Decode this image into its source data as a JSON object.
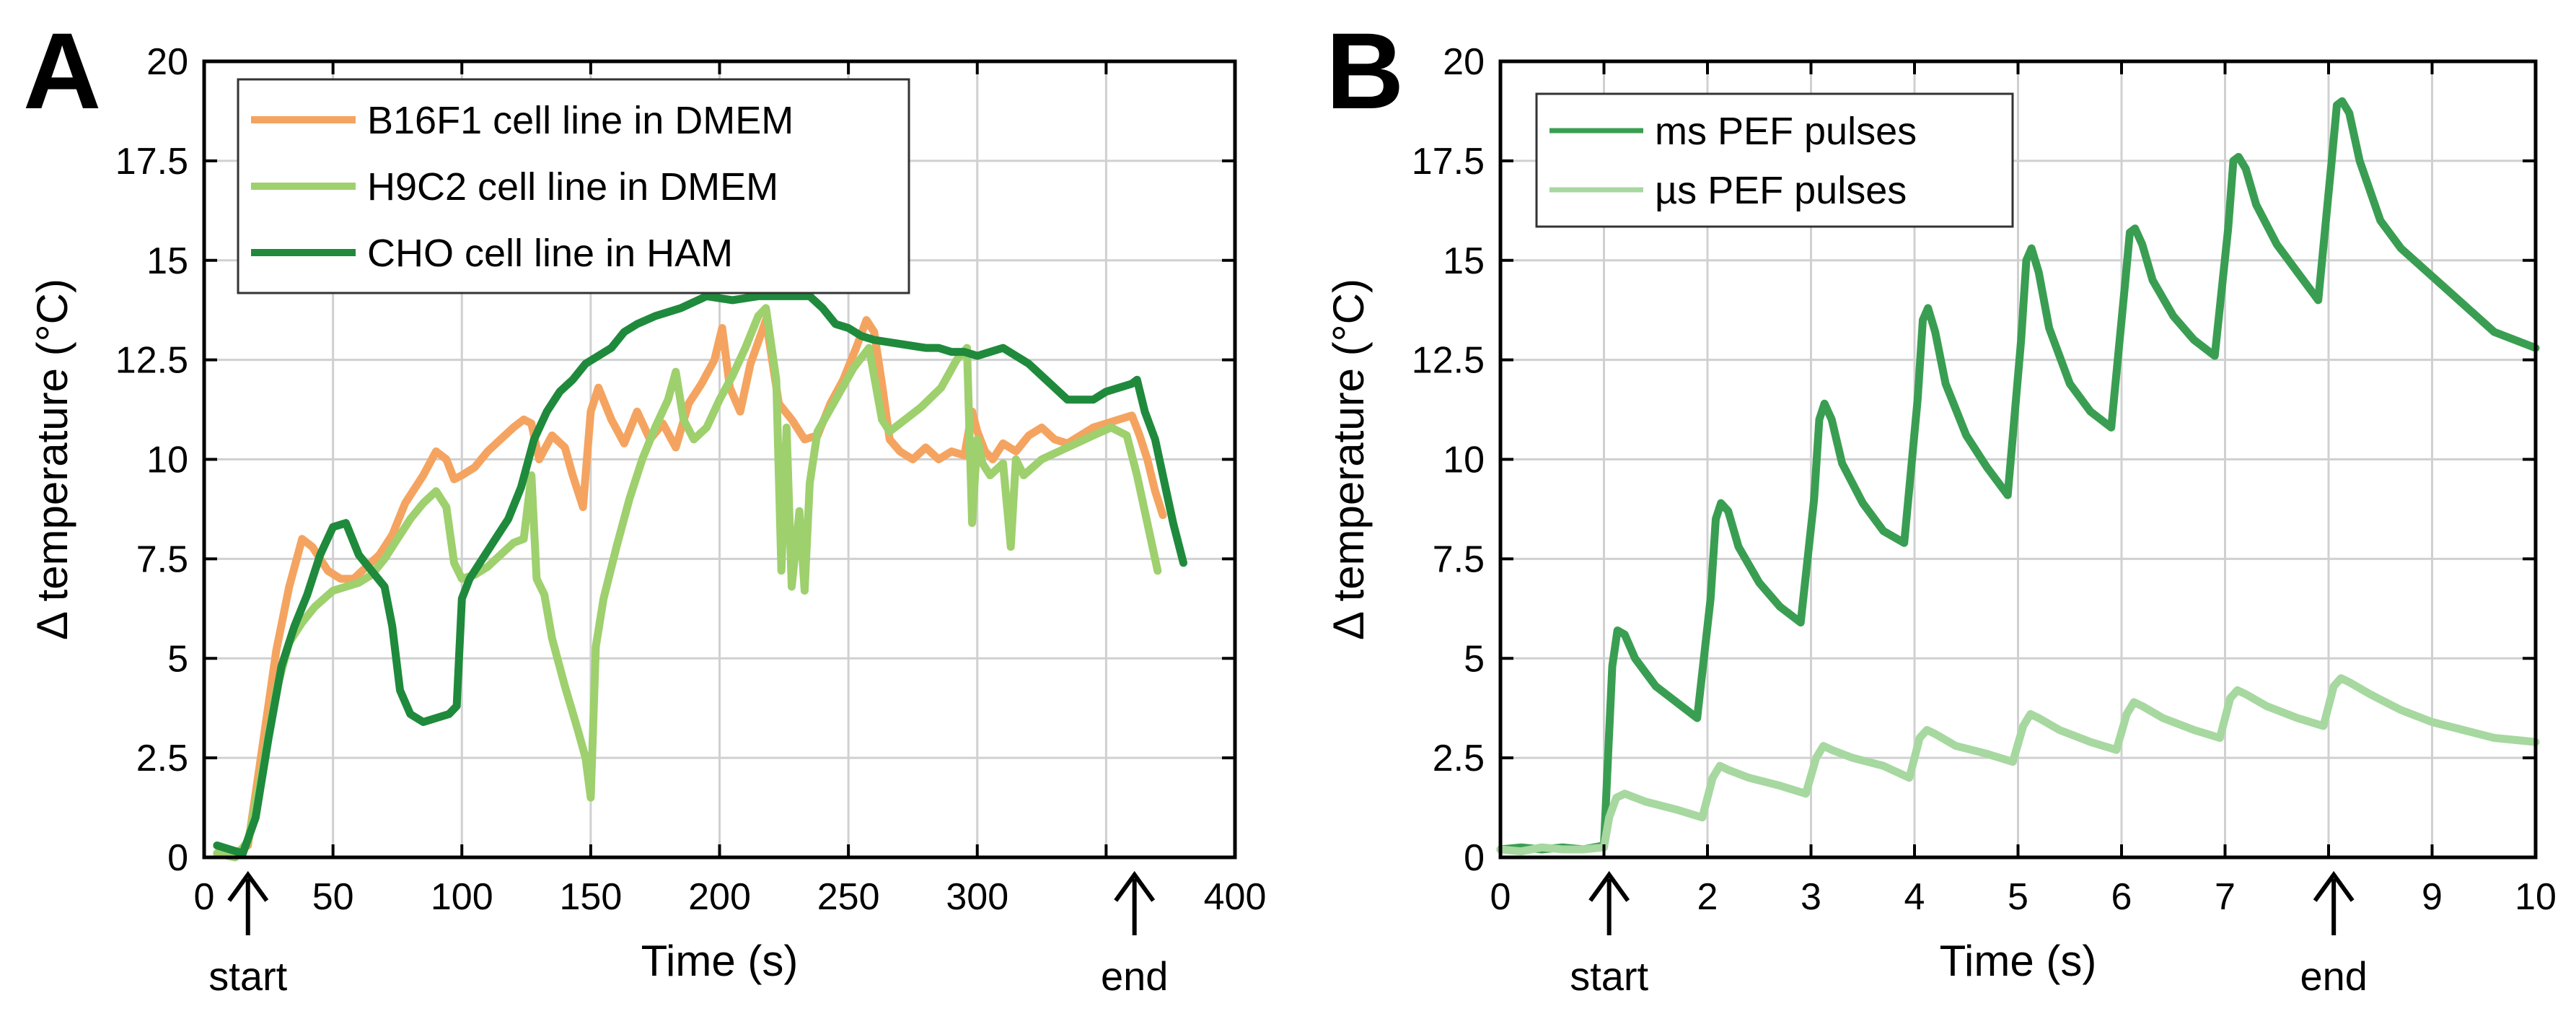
{
  "chart_data": [
    {
      "type": "line",
      "panel_label": "A",
      "xlabel": "Time (s)",
      "ylabel": "Δ temperature (°C)",
      "xlim": [
        0,
        400
      ],
      "ylim": [
        0,
        20
      ],
      "xticks": [
        0,
        50,
        100,
        150,
        200,
        250,
        300,
        350,
        400
      ],
      "xtick_labels": [
        "0",
        "50",
        "100",
        "150",
        "200",
        "250",
        "300",
        "",
        "400"
      ],
      "yticks": [
        0,
        2.5,
        5,
        7.5,
        10,
        12.5,
        15,
        17.5,
        20
      ],
      "ytick_labels": [
        "0",
        "2.5",
        "5",
        "7.5",
        "10",
        "12.5",
        "15",
        "17.5",
        "20"
      ],
      "grid": true,
      "legend_position": "top-left",
      "annotations": [
        {
          "text": "start",
          "x": 17
        },
        {
          "text": "end",
          "x": 361
        }
      ],
      "series": [
        {
          "name": "B16F1 cell line in DMEM",
          "color": "#f4a460",
          "x": [
            5,
            12,
            17,
            22,
            28,
            33,
            38,
            42,
            48,
            53,
            58,
            63,
            68,
            73,
            78,
            85,
            90,
            94,
            97,
            100,
            105,
            110,
            115,
            120,
            124,
            127,
            130,
            135,
            140,
            143,
            147,
            150,
            153,
            158,
            163,
            168,
            173,
            178,
            183,
            188,
            193,
            198,
            201,
            204,
            208,
            212,
            218,
            223,
            228,
            233,
            238,
            243,
            248,
            253,
            257,
            260,
            263,
            266,
            270,
            275,
            280,
            285,
            290,
            295,
            298,
            300,
            303,
            306,
            310,
            315,
            320,
            325,
            330,
            335,
            340,
            345,
            350,
            355,
            360,
            363,
            366,
            369,
            372
          ],
          "values": [
            0.1,
            0.1,
            0.3,
            2.5,
            5.2,
            6.8,
            8.0,
            7.8,
            7.2,
            7.0,
            7.0,
            7.3,
            7.6,
            8.1,
            8.9,
            9.6,
            10.2,
            10.0,
            9.5,
            9.6,
            9.8,
            10.2,
            10.5,
            10.8,
            11.0,
            10.9,
            10.0,
            10.6,
            10.3,
            9.6,
            8.8,
            11.2,
            11.8,
            11.0,
            10.4,
            11.2,
            10.5,
            10.9,
            10.3,
            11.4,
            11.9,
            12.5,
            13.3,
            11.8,
            11.2,
            12.4,
            13.5,
            11.4,
            11.0,
            10.5,
            10.6,
            11.4,
            12.0,
            12.8,
            13.5,
            13.2,
            11.9,
            10.5,
            10.2,
            10.0,
            10.3,
            10.0,
            10.2,
            10.1,
            11.2,
            10.7,
            10.2,
            10.0,
            10.4,
            10.2,
            10.6,
            10.8,
            10.5,
            10.4,
            10.6,
            10.8,
            10.9,
            11.0,
            11.1,
            10.6,
            10.0,
            9.2,
            8.6
          ]
        },
        {
          "name": "H9C2 cell line in DMEM",
          "color": "#9ed06e",
          "x": [
            5,
            12,
            17,
            22,
            28,
            33,
            38,
            43,
            50,
            55,
            60,
            65,
            70,
            75,
            80,
            85,
            90,
            94,
            97,
            100,
            105,
            110,
            115,
            120,
            124,
            127,
            129,
            132,
            135,
            140,
            145,
            148,
            150,
            152,
            155,
            160,
            165,
            170,
            175,
            180,
            183,
            186,
            190,
            195,
            200,
            205,
            210,
            215,
            218,
            222,
            224,
            226,
            228,
            231,
            233,
            235,
            238,
            245,
            252,
            258,
            263,
            266,
            270,
            278,
            286,
            292,
            296,
            298,
            300,
            302,
            305,
            310,
            313,
            315,
            318,
            325,
            335,
            345,
            352,
            358,
            362,
            366,
            370
          ],
          "values": [
            0.1,
            0.0,
            0.4,
            2.0,
            4.2,
            5.4,
            5.9,
            6.3,
            6.7,
            6.8,
            6.9,
            7.1,
            7.5,
            8.0,
            8.5,
            8.9,
            9.2,
            8.8,
            7.4,
            7.0,
            7.1,
            7.3,
            7.6,
            7.9,
            8.0,
            9.6,
            7.0,
            6.6,
            5.5,
            4.3,
            3.2,
            2.5,
            1.5,
            5.3,
            6.5,
            7.8,
            9.0,
            10.0,
            10.8,
            11.5,
            12.2,
            11.0,
            10.5,
            10.8,
            11.5,
            12.1,
            12.8,
            13.6,
            13.8,
            12.0,
            7.2,
            10.8,
            6.8,
            8.7,
            6.7,
            9.4,
            10.7,
            11.5,
            12.3,
            12.8,
            11.0,
            10.7,
            10.9,
            11.3,
            11.8,
            12.5,
            12.8,
            8.4,
            10.5,
            9.9,
            9.6,
            9.9,
            7.8,
            10.0,
            9.6,
            10.0,
            10.3,
            10.6,
            10.8,
            10.6,
            9.6,
            8.4,
            7.2
          ]
        },
        {
          "name": "CHO cell line in HAM",
          "color": "#1f8a3c",
          "x": [
            5,
            10,
            15,
            20,
            25,
            30,
            35,
            40,
            45,
            50,
            55,
            60,
            65,
            70,
            73,
            76,
            80,
            85,
            90,
            95,
            98,
            100,
            103,
            108,
            113,
            118,
            123,
            128,
            133,
            138,
            143,
            148,
            153,
            158,
            163,
            168,
            175,
            185,
            195,
            205,
            215,
            225,
            235,
            240,
            245,
            250,
            255,
            260,
            270,
            280,
            285,
            290,
            295,
            300,
            305,
            310,
            315,
            320,
            325,
            330,
            335,
            340,
            345,
            350,
            355,
            360,
            362,
            365,
            369,
            372,
            376,
            380
          ],
          "values": [
            0.3,
            0.2,
            0.1,
            1.0,
            3.0,
            4.8,
            5.8,
            6.6,
            7.6,
            8.3,
            8.4,
            7.6,
            7.2,
            6.8,
            5.8,
            4.2,
            3.6,
            3.4,
            3.5,
            3.6,
            3.8,
            6.5,
            7.0,
            7.5,
            8.0,
            8.5,
            9.3,
            10.5,
            11.2,
            11.7,
            12.0,
            12.4,
            12.6,
            12.8,
            13.2,
            13.4,
            13.6,
            13.8,
            14.1,
            14.0,
            14.1,
            14.1,
            14.1,
            13.8,
            13.4,
            13.3,
            13.1,
            13.0,
            12.9,
            12.8,
            12.8,
            12.7,
            12.7,
            12.6,
            12.7,
            12.8,
            12.6,
            12.4,
            12.1,
            11.8,
            11.5,
            11.5,
            11.5,
            11.7,
            11.8,
            11.9,
            12.0,
            11.2,
            10.5,
            9.6,
            8.4,
            7.4
          ]
        }
      ]
    },
    {
      "type": "line",
      "panel_label": "B",
      "xlabel": "Time (s)",
      "ylabel": "Δ temperature (°C)",
      "xlim": [
        0,
        10
      ],
      "ylim": [
        0,
        20
      ],
      "xticks": [
        0,
        1,
        2,
        3,
        4,
        5,
        6,
        7,
        8,
        9,
        10
      ],
      "xtick_labels": [
        "0",
        "",
        "2",
        "3",
        "4",
        "5",
        "6",
        "7",
        "",
        "9",
        "10"
      ],
      "yticks": [
        0,
        2.5,
        5,
        7.5,
        10,
        12.5,
        15,
        17.5,
        20
      ],
      "ytick_labels": [
        "0",
        "2.5",
        "5",
        "7.5",
        "10",
        "12.5",
        "15",
        "17.5",
        "20"
      ],
      "grid": true,
      "legend_position": "top-left",
      "annotations": [
        {
          "text": "start",
          "x": 1.05
        },
        {
          "text": "end",
          "x": 8.05
        }
      ],
      "series": [
        {
          "name": "ms PEF pulses",
          "color": "#3a9e52",
          "x": [
            0,
            0.2,
            0.4,
            0.6,
            0.8,
            1.0,
            1.03,
            1.08,
            1.13,
            1.2,
            1.3,
            1.5,
            1.7,
            1.9,
            2.03,
            2.08,
            2.13,
            2.2,
            2.3,
            2.5,
            2.7,
            2.9,
            3.03,
            3.08,
            3.13,
            3.2,
            3.3,
            3.5,
            3.7,
            3.9,
            4.03,
            4.08,
            4.13,
            4.2,
            4.3,
            4.5,
            4.7,
            4.9,
            5.03,
            5.08,
            5.13,
            5.2,
            5.3,
            5.5,
            5.7,
            5.9,
            6.03,
            6.08,
            6.13,
            6.2,
            6.3,
            6.5,
            6.7,
            6.9,
            7.03,
            7.08,
            7.13,
            7.2,
            7.3,
            7.5,
            7.7,
            7.9,
            8.03,
            8.08,
            8.13,
            8.2,
            8.3,
            8.5,
            8.7,
            9.0,
            9.3,
            9.6,
            10.0
          ],
          "values": [
            0.2,
            0.25,
            0.2,
            0.25,
            0.2,
            0.3,
            2.0,
            4.8,
            5.7,
            5.6,
            5.0,
            4.3,
            3.9,
            3.5,
            6.5,
            8.5,
            8.9,
            8.7,
            7.8,
            6.9,
            6.3,
            5.9,
            9.0,
            11.0,
            11.4,
            11.0,
            9.9,
            8.9,
            8.2,
            7.9,
            11.5,
            13.5,
            13.8,
            13.2,
            11.9,
            10.6,
            9.8,
            9.1,
            13.0,
            15.0,
            15.3,
            14.7,
            13.3,
            11.9,
            11.2,
            10.8,
            14.3,
            15.7,
            15.8,
            15.4,
            14.5,
            13.6,
            13.0,
            12.6,
            15.8,
            17.5,
            17.6,
            17.3,
            16.4,
            15.4,
            14.7,
            14.0,
            17.5,
            18.9,
            19.0,
            18.7,
            17.5,
            16.0,
            15.3,
            14.6,
            13.9,
            13.2,
            12.8
          ]
        },
        {
          "name": "µs PEF pulses",
          "color": "#a6d8a0",
          "x": [
            0,
            0.2,
            0.4,
            0.6,
            0.8,
            1.0,
            1.05,
            1.12,
            1.2,
            1.4,
            1.7,
            1.95,
            2.05,
            2.12,
            2.2,
            2.4,
            2.7,
            2.95,
            3.05,
            3.12,
            3.2,
            3.4,
            3.7,
            3.95,
            4.05,
            4.12,
            4.2,
            4.4,
            4.7,
            4.95,
            5.05,
            5.12,
            5.2,
            5.4,
            5.7,
            5.95,
            6.05,
            6.12,
            6.2,
            6.4,
            6.7,
            6.95,
            7.05,
            7.12,
            7.2,
            7.4,
            7.7,
            7.95,
            8.05,
            8.12,
            8.2,
            8.4,
            8.7,
            9.0,
            9.3,
            9.6,
            10.0
          ],
          "values": [
            0.2,
            0.15,
            0.25,
            0.2,
            0.2,
            0.25,
            1.0,
            1.5,
            1.6,
            1.4,
            1.2,
            1.0,
            2.0,
            2.3,
            2.2,
            2.0,
            1.8,
            1.6,
            2.5,
            2.8,
            2.7,
            2.5,
            2.3,
            2.0,
            3.0,
            3.2,
            3.1,
            2.8,
            2.6,
            2.4,
            3.3,
            3.6,
            3.5,
            3.2,
            2.9,
            2.7,
            3.6,
            3.9,
            3.8,
            3.5,
            3.2,
            3.0,
            4.0,
            4.2,
            4.1,
            3.8,
            3.5,
            3.3,
            4.3,
            4.5,
            4.4,
            4.1,
            3.7,
            3.4,
            3.2,
            3.0,
            2.9
          ]
        }
      ]
    }
  ]
}
